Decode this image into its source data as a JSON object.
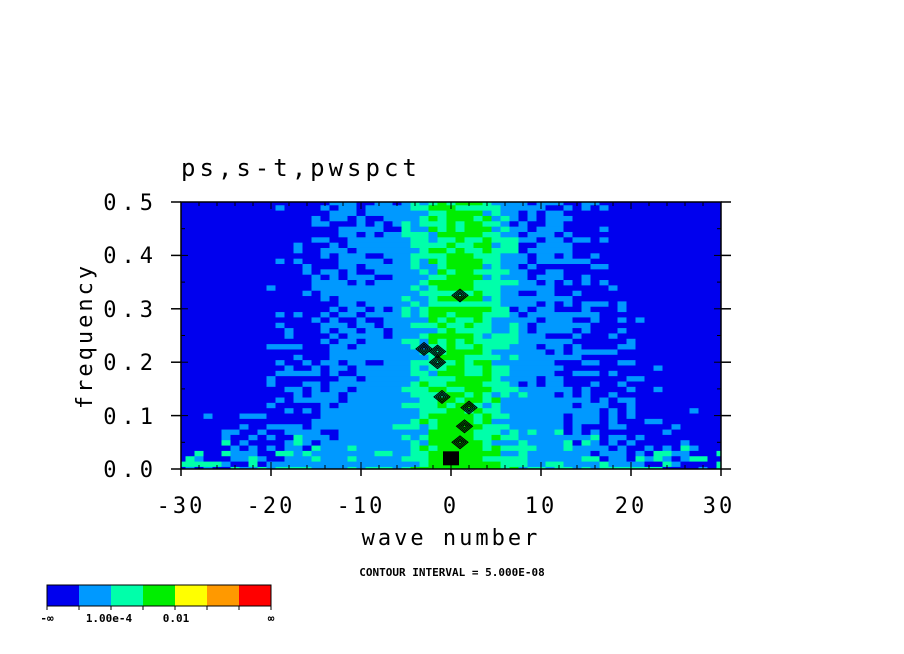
{
  "chart_data": {
    "type": "heatmap",
    "title": "ps,s-t,pwspct",
    "xlabel": "wave number",
    "ylabel": "frequency",
    "xlim": [
      -30,
      30
    ],
    "ylim": [
      0,
      0.5
    ],
    "x_ticks": [
      "-30",
      "-20",
      "-10",
      "0",
      "10",
      "20",
      "30"
    ],
    "y_ticks": [
      "0.0",
      "0.1",
      "0.2",
      "0.3",
      "0.4",
      "0.5"
    ],
    "x_tick_values": [
      -30,
      -20,
      -10,
      0,
      10,
      20,
      30
    ],
    "y_tick_values": [
      0,
      0.1,
      0.2,
      0.3,
      0.4,
      0.5
    ],
    "footer": "CONTOUR INTERVAL = 5.000E-08",
    "legend": {
      "colors": [
        "#0000ee",
        "#0099ff",
        "#00ffaa",
        "#00ee00",
        "#ffff00",
        "#ff9900",
        "#ff0000"
      ],
      "labels": [
        "-∞",
        "1.00e-4",
        "0.01",
        "∞"
      ]
    },
    "grid": false,
    "field_description": {
      "background_level": "#0000ee",
      "broad_band_center": 0,
      "broad_band_halfwidth": 18,
      "core_band_center": 1,
      "core_band_halfwidth": 5
    },
    "black_contour_peaks": [
      {
        "x": 0,
        "y": 0.02
      },
      {
        "x": 1,
        "y": 0.05
      },
      {
        "x": 1.5,
        "y": 0.08
      },
      {
        "x": -1,
        "y": 0.135
      },
      {
        "x": 2,
        "y": 0.115
      },
      {
        "x": -1.5,
        "y": 0.2
      },
      {
        "x": -1.5,
        "y": 0.22
      },
      {
        "x": -3,
        "y": 0.225
      },
      {
        "x": 1,
        "y": 0.325
      }
    ]
  }
}
